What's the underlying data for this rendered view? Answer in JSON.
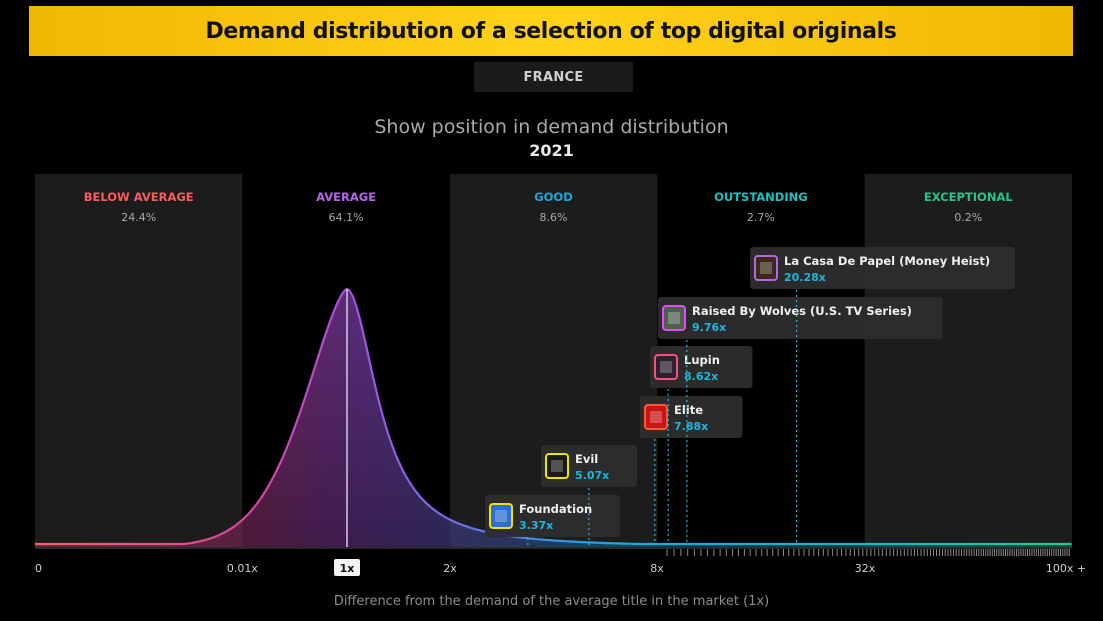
{
  "header": {
    "title": "Demand distribution of a selection of top digital originals",
    "country": "FRANCE"
  },
  "colors": {
    "banner": "#f7c30c",
    "below_average": "#ff5a5f",
    "average": "#b565e8",
    "good": "#1ba9dc",
    "outstanding": "#19c3c0",
    "exceptional": "#20c98a",
    "title_value": "#19b8e0"
  },
  "chart_data": {
    "type": "area",
    "title": "Show position in demand distribution",
    "subtitle": "2021",
    "xlabel": "Difference from the demand of the average title in the market (1x)",
    "x_ticks": [
      {
        "label": "0"
      },
      {
        "label": "0.01x"
      },
      {
        "label": "1x",
        "highlight": true
      },
      {
        "label": "2x"
      },
      {
        "label": "8x"
      },
      {
        "label": "32x"
      },
      {
        "label": "100x +"
      }
    ],
    "bands": [
      {
        "name": "BELOW AVERAGE",
        "share": "24.4%",
        "color": "#ff5a5f"
      },
      {
        "name": "AVERAGE",
        "share": "64.1%",
        "color": "#b565e8"
      },
      {
        "name": "GOOD",
        "share": "8.6%",
        "color": "#1ba9dc"
      },
      {
        "name": "OUTSTANDING",
        "share": "2.7%",
        "color": "#19c3c0"
      },
      {
        "name": "EXCEPTIONAL",
        "share": "0.2%",
        "color": "#20c98a"
      }
    ],
    "titles": [
      {
        "name": "Foundation",
        "value": 3.37,
        "label": "3.37x",
        "icon": "foundation-poster-icon",
        "icon_color": "#2c6fd6",
        "border": "#f0e300"
      },
      {
        "name": "Evil",
        "value": 5.07,
        "label": "5.07x",
        "icon": "evil-poster-icon",
        "icon_color": "#1a1a1a",
        "border": "#f0e300"
      },
      {
        "name": "Elite",
        "value": 7.88,
        "label": "7.88x",
        "icon": "elite-poster-icon",
        "icon_color": "#c9141a",
        "border": "#ff5a30"
      },
      {
        "name": "Lupin",
        "value": 8.62,
        "label": "8.62x",
        "icon": "lupin-poster-icon",
        "icon_color": "#2a2030",
        "border": "#ff4d7a"
      },
      {
        "name": "Raised By Wolves (U.S. TV Series)",
        "value": 9.76,
        "label": "9.76x",
        "icon": "raised-by-wolves-poster-icon",
        "icon_color": "#4f5f4f",
        "border": "#e14cff"
      },
      {
        "name": "La Casa De Papel (Money Heist)",
        "value": 20.28,
        "label": "20.28x",
        "icon": "money-heist-poster-icon",
        "icon_color": "#3a2a18",
        "border": "#b565e8"
      }
    ]
  }
}
